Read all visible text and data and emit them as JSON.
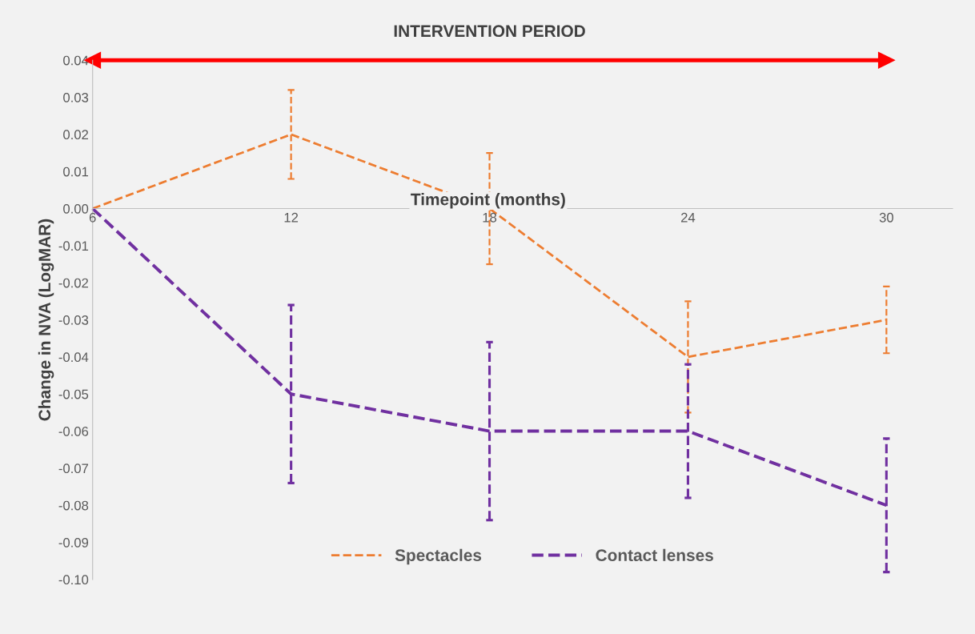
{
  "chart_data": {
    "type": "line",
    "x": [
      6,
      12,
      18,
      24,
      30
    ],
    "xlabel": "Timepoint (months)",
    "ylabel": "Change in NVA (LogMAR)",
    "series": [
      {
        "name": "Spectacles",
        "color": "#ed7d31",
        "values": [
          0.0,
          0.02,
          0.0,
          -0.04,
          -0.03
        ],
        "errors": [
          null,
          0.012,
          0.015,
          0.015,
          0.009
        ]
      },
      {
        "name": "Contact lenses",
        "color": "#7030a0",
        "values": [
          0.0,
          -0.05,
          -0.06,
          -0.06,
          -0.08
        ],
        "errors": [
          null,
          0.024,
          0.024,
          0.018,
          0.018
        ]
      },
      {
        "type": "line",
        "color": "#ff0000",
        "x": [
          6,
          30
        ],
        "values": [
          0.04,
          0.04
        ],
        "line_style": "solid",
        "marker": "triangle"
      }
    ],
    "annotations": [
      {
        "text": "INTERVENTION PERIOD",
        "x": 18,
        "y": 0.04
      }
    ],
    "xlim": [
      6,
      32
    ],
    "xticks": [
      6,
      12,
      18,
      24,
      30
    ],
    "ylim": [
      -0.1,
      0.04
    ],
    "yticks": [
      {
        "value": 0.04,
        "label": "0.04"
      },
      {
        "value": 0.03,
        "label": "0.03"
      },
      {
        "value": 0.02,
        "label": "0.02"
      },
      {
        "value": 0.01,
        "label": "0.01"
      },
      {
        "value": 0.0,
        "label": "0.00"
      },
      {
        "value": -0.01,
        "label": "-0.01"
      },
      {
        "value": -0.02,
        "label": "-0.02"
      },
      {
        "value": -0.03,
        "label": "-0.03"
      },
      {
        "value": -0.04,
        "label": "-0.04"
      },
      {
        "value": -0.05,
        "label": "-0.05"
      },
      {
        "value": -0.06,
        "label": "-0.06"
      },
      {
        "value": -0.07,
        "label": "-0.07"
      },
      {
        "value": -0.08,
        "label": "-0.08"
      },
      {
        "value": -0.09,
        "label": "-0.09"
      },
      {
        "value": -0.1,
        "label": "-0.10"
      }
    ],
    "line_style": "dashed",
    "marker": "none",
    "grid": false,
    "legend": "bottom"
  }
}
